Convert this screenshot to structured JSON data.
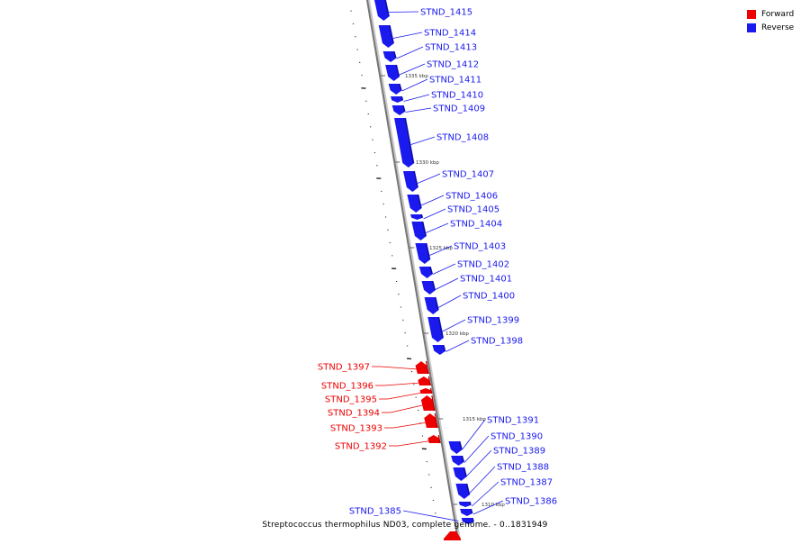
{
  "caption": "Streptococcus thermophilus ND03, complete genome. - 0..1831949",
  "legend": [
    {
      "label": "Forward",
      "color": "#ee0000"
    },
    {
      "label": "Reverse",
      "color": "#1a1aee"
    }
  ],
  "colors": {
    "forward": "#ee0000",
    "reverse": "#1a1aee",
    "backbone": "#777777"
  },
  "scale_labels": [
    "1335 kbp",
    "1330 kbp",
    "1325 kbp",
    "1320 kbp",
    "1315 kbp",
    "1310 kbp"
  ],
  "genes": [
    {
      "id": "STND_1415",
      "strand": "reverse"
    },
    {
      "id": "STND_1414",
      "strand": "reverse"
    },
    {
      "id": "STND_1413",
      "strand": "reverse"
    },
    {
      "id": "STND_1412",
      "strand": "reverse"
    },
    {
      "id": "STND_1411",
      "strand": "reverse"
    },
    {
      "id": "STND_1410",
      "strand": "reverse"
    },
    {
      "id": "STND_1409",
      "strand": "reverse"
    },
    {
      "id": "STND_1408",
      "strand": "reverse"
    },
    {
      "id": "STND_1407",
      "strand": "reverse"
    },
    {
      "id": "STND_1406",
      "strand": "reverse"
    },
    {
      "id": "STND_1405",
      "strand": "reverse"
    },
    {
      "id": "STND_1404",
      "strand": "reverse"
    },
    {
      "id": "STND_1403",
      "strand": "reverse"
    },
    {
      "id": "STND_1402",
      "strand": "reverse"
    },
    {
      "id": "STND_1401",
      "strand": "reverse"
    },
    {
      "id": "STND_1400",
      "strand": "reverse"
    },
    {
      "id": "STND_1399",
      "strand": "reverse"
    },
    {
      "id": "STND_1398",
      "strand": "reverse"
    },
    {
      "id": "STND_1397",
      "strand": "forward"
    },
    {
      "id": "STND_1396",
      "strand": "forward"
    },
    {
      "id": "STND_1395",
      "strand": "forward"
    },
    {
      "id": "STND_1394",
      "strand": "forward"
    },
    {
      "id": "STND_1393",
      "strand": "forward"
    },
    {
      "id": "STND_1392",
      "strand": "forward"
    },
    {
      "id": "STND_1391",
      "strand": "reverse"
    },
    {
      "id": "STND_1390",
      "strand": "reverse"
    },
    {
      "id": "STND_1389",
      "strand": "reverse"
    },
    {
      "id": "STND_1388",
      "strand": "reverse"
    },
    {
      "id": "STND_1387",
      "strand": "reverse"
    },
    {
      "id": "STND_1386",
      "strand": "reverse"
    },
    {
      "id": "STND_1385",
      "strand": "reverse"
    }
  ]
}
